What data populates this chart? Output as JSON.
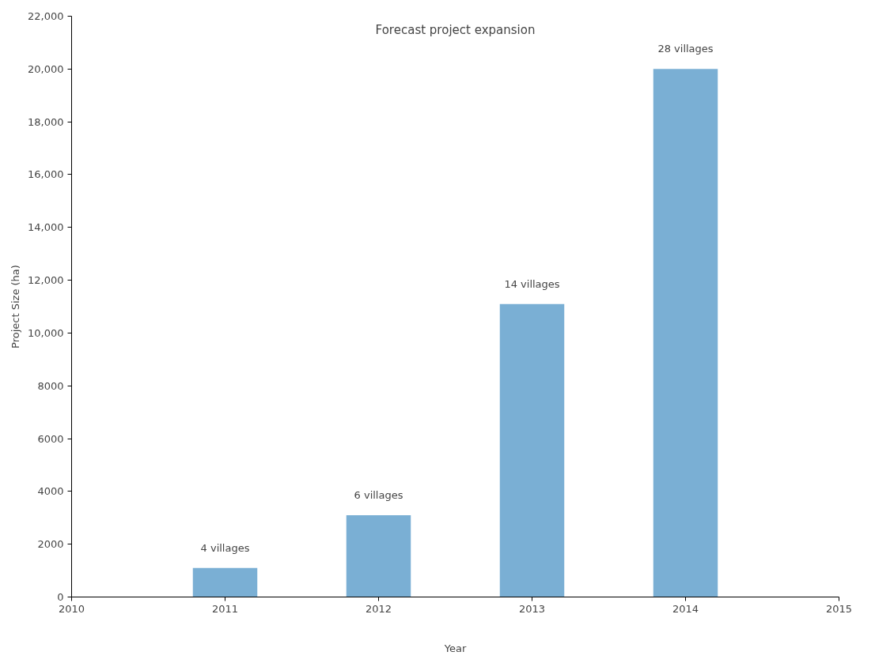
{
  "chart_data": {
    "type": "bar",
    "title": "Forecast project expansion",
    "xlabel": "Year",
    "ylabel": "Project Size (ha)",
    "x": [
      2011,
      2012,
      2013,
      2014
    ],
    "values": [
      1100,
      3100,
      11100,
      20000
    ],
    "color": "#7aafd4",
    "xlim": [
      2010,
      2015
    ],
    "xticks": [
      2010,
      2011,
      2012,
      2013,
      2014,
      2015
    ],
    "ylim": [
      0,
      22000
    ],
    "yticks": [
      0,
      2000,
      4000,
      6000,
      8000,
      {
        "value": 10000,
        "label": "10,000"
      },
      {
        "value": 12000,
        "label": "12,000"
      },
      {
        "value": 14000,
        "label": "14,000"
      },
      {
        "value": 16000,
        "label": "16,000"
      },
      {
        "value": 18000,
        "label": "18,000"
      },
      {
        "value": 20000,
        "label": "20,000"
      },
      {
        "value": 22000,
        "label": "22,000"
      }
    ],
    "grid": false,
    "annotations": [
      {
        "text": "4 villages",
        "x": 2011,
        "y": 1100
      },
      {
        "text": "6 villages",
        "x": 2012,
        "y": 3100
      },
      {
        "text": "14 villages",
        "x": 2013,
        "y": 11100
      },
      {
        "text": "28 villages",
        "x": 2014,
        "y": 20000
      }
    ]
  }
}
